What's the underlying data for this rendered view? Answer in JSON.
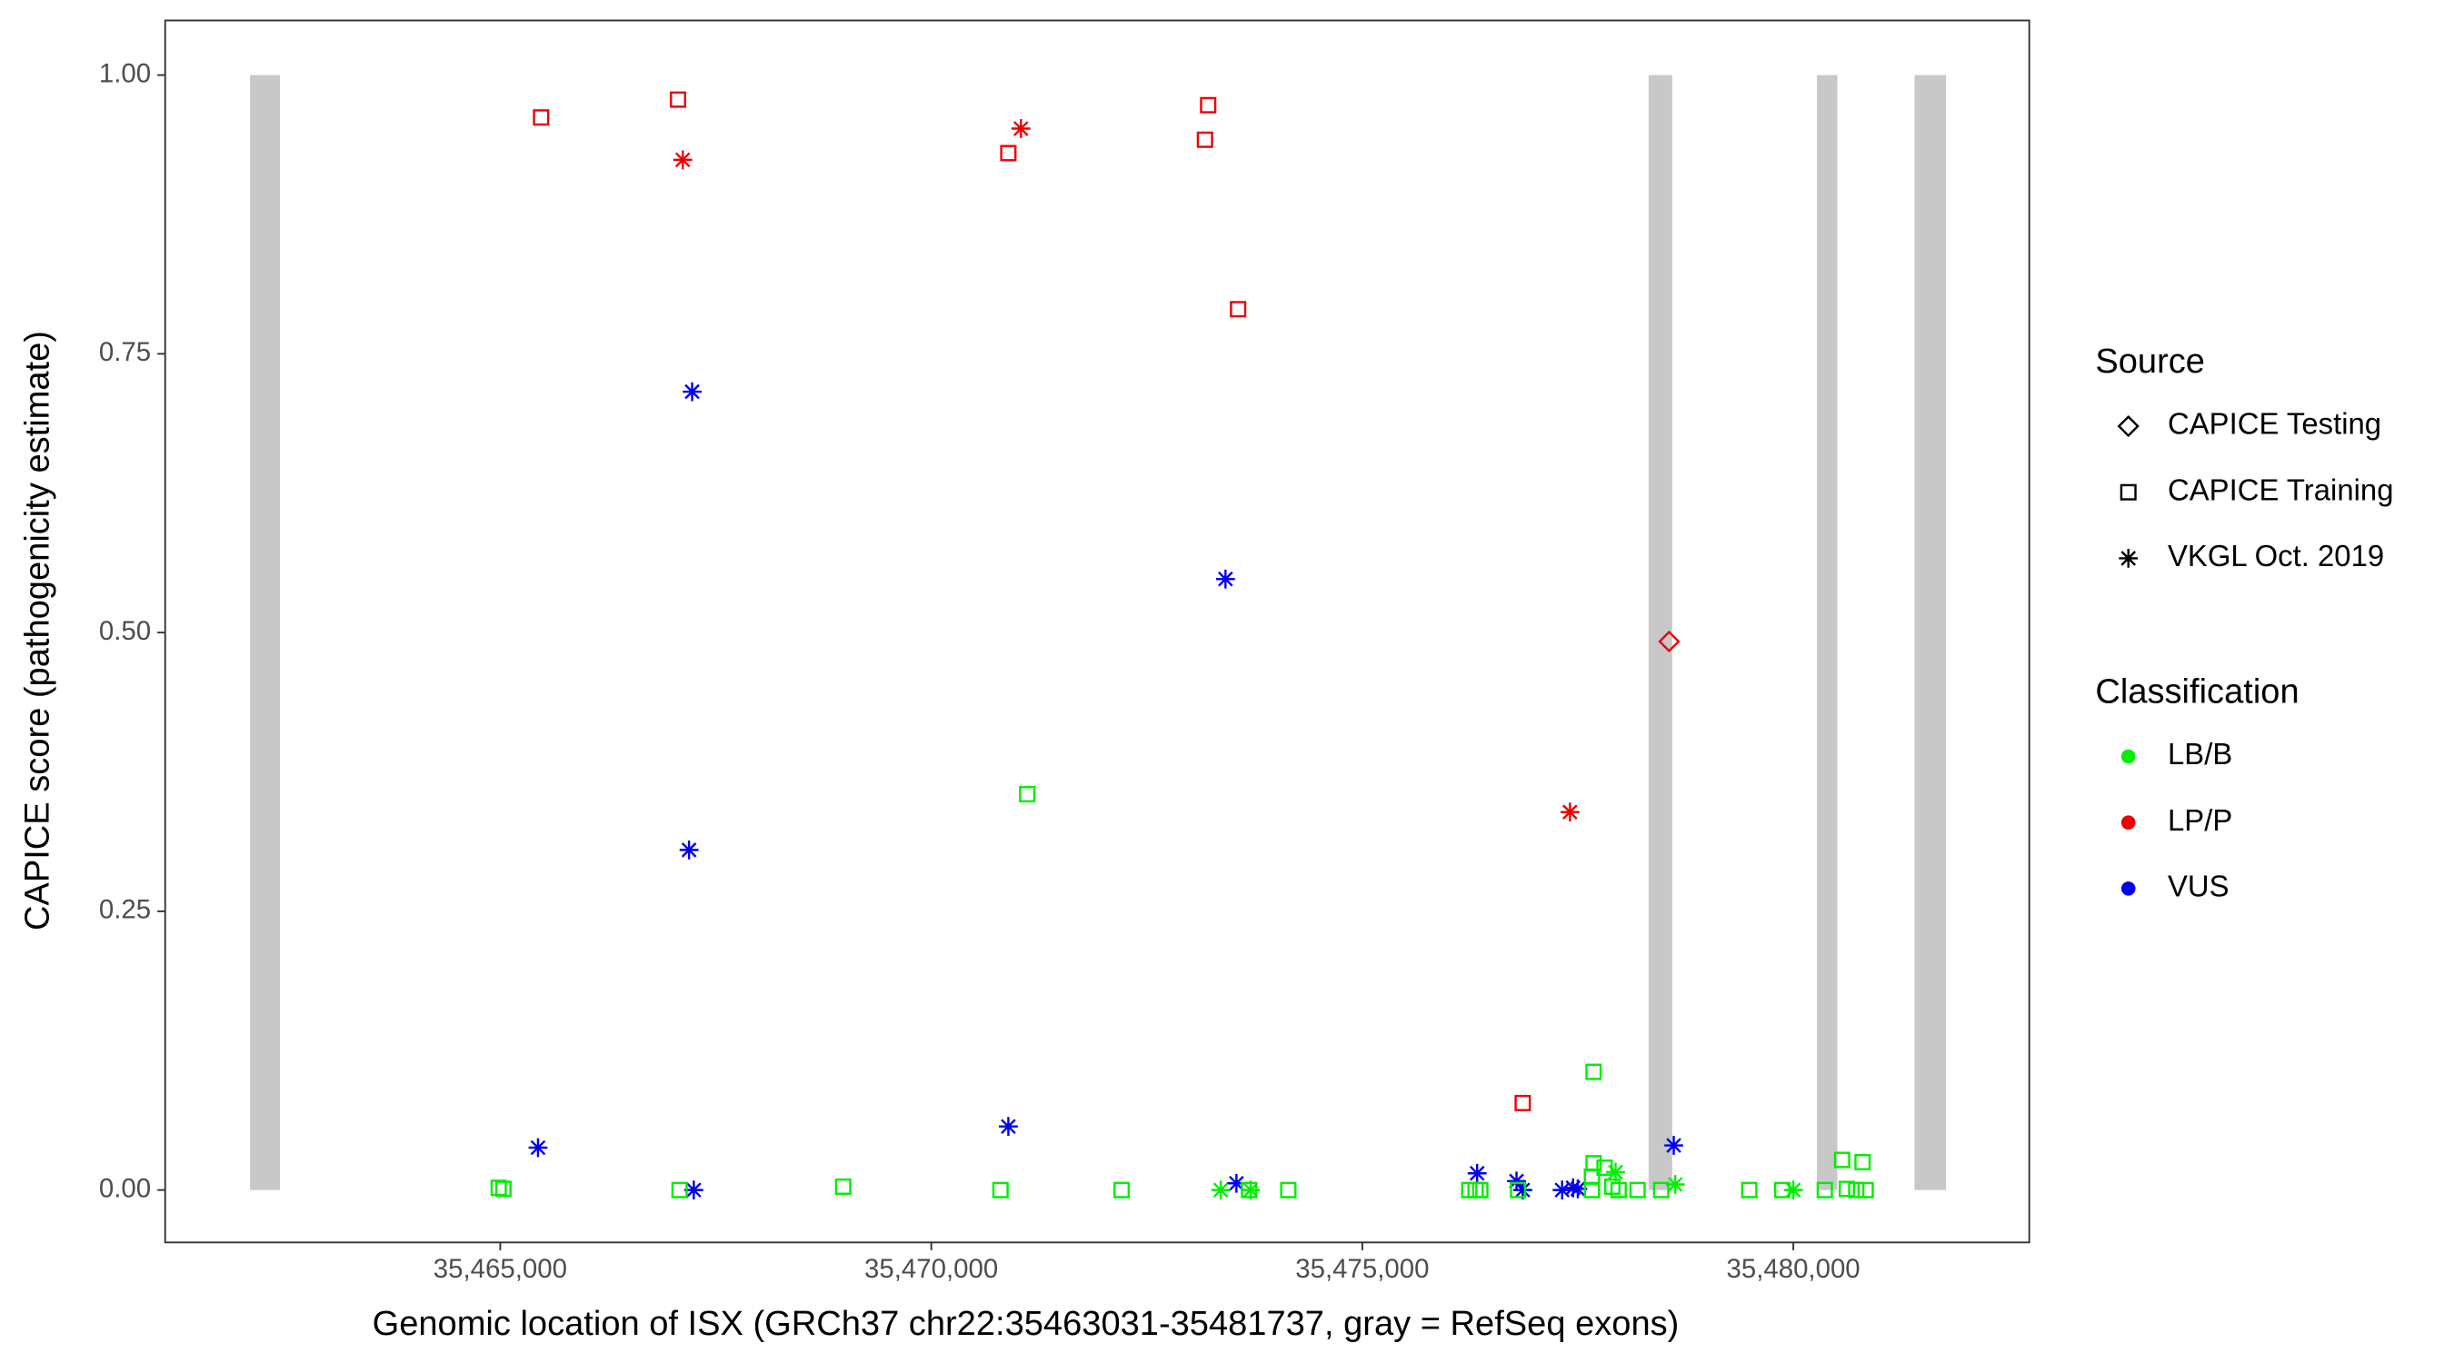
{
  "chart_data": {
    "type": "scatter",
    "x_label": "Genomic location of ISX (GRCh37 chr22:35463031-35481737, gray = RefSeq exons)",
    "y_label": "CAPICE score (pathogenicity estimate)",
    "xlim": [
      35461113,
      35482737
    ],
    "ylim": [
      -0.047,
      1.049
    ],
    "xticks": [
      {
        "value": 35465000,
        "label": "35,465,000"
      },
      {
        "value": 35470000,
        "label": "35,470,000"
      },
      {
        "value": 35475000,
        "label": "35,475,000"
      },
      {
        "value": 35480000,
        "label": "35,480,000"
      }
    ],
    "yticks": [
      {
        "value": 0,
        "label": "0.00"
      },
      {
        "value": 0.25,
        "label": "0.25"
      },
      {
        "value": 0.5,
        "label": "0.50"
      },
      {
        "value": 0.75,
        "label": "0.75"
      },
      {
        "value": 1,
        "label": "1.00"
      }
    ],
    "grid": false,
    "exon_color": "#c8c8c8",
    "exons": [
      {
        "start": 35462098,
        "end": 35462445
      },
      {
        "start": 35478321,
        "end": 35478595
      },
      {
        "start": 35480274,
        "end": 35480511
      },
      {
        "start": 35481406,
        "end": 35481771
      }
    ],
    "source_legend": {
      "title": "Source",
      "items": [
        {
          "name": "CAPICE Testing",
          "shape": "diamond"
        },
        {
          "name": "CAPICE Training",
          "shape": "square"
        },
        {
          "name": "VKGL Oct. 2019",
          "shape": "star"
        }
      ]
    },
    "classification_legend": {
      "title": "Classification",
      "items": [
        {
          "name": "LB/B",
          "color": "#00ee00"
        },
        {
          "name": "LP/P",
          "color": "#ee0000"
        },
        {
          "name": "VUS",
          "color": "#0000ee"
        }
      ]
    },
    "series": [
      {
        "source": 1,
        "classification": 1,
        "x": [
          35465474,
          35467062,
          35470894,
          35473212,
          35473175,
          35473559,
          35476861
        ],
        "values": [
          0.962,
          0.978,
          0.93,
          0.973,
          0.942,
          0.79,
          0.078
        ]
      },
      {
        "source": 2,
        "classification": 1,
        "x": [
          35467117,
          35471040,
          35477409
        ],
        "values": [
          0.924,
          0.952,
          0.339
        ]
      },
      {
        "source": 0,
        "classification": 1,
        "x": [
          35478559
        ],
        "values": [
          0.492
        ]
      },
      {
        "source": 2,
        "classification": 2,
        "x": [
          35467226,
          35467190,
          35465438,
          35470894,
          35473413,
          35467245,
          35473540,
          35476332,
          35476789,
          35476861,
          35477318,
          35477445,
          35477500,
          35478613
        ],
        "values": [
          0.716,
          0.305,
          0.038,
          0.057,
          0.548,
          0.0,
          0.006,
          0.015,
          0.008,
          0.0,
          0.0,
          0.002,
          0.001,
          0.04
        ]
      },
      {
        "source": 1,
        "classification": 0,
        "x": [
          35464982,
          35465037,
          35467080,
          35468978,
          35470803,
          35471113,
          35472208,
          35473686,
          35474142,
          35476241,
          35476314,
          35476369,
          35476807,
          35477683,
          35477683,
          35477810,
          35477664,
          35477664,
          35477901,
          35477974,
          35478193,
          35478467,
          35479489,
          35479872,
          35480365,
          35480566,
          35480621,
          35480730,
          35480803,
          35480839
        ],
        "values": [
          0.002,
          0.001,
          0.0,
          0.003,
          0.0,
          0.355,
          0.0,
          0.0,
          0.0,
          0.0,
          0.0,
          0.0,
          0.0,
          0.106,
          0.024,
          0.02,
          0.0,
          0.012,
          0.003,
          0.0,
          0.0,
          0.0,
          0.0,
          0.0,
          0.0,
          0.027,
          0.001,
          0.0,
          0.025,
          0.0
        ]
      },
      {
        "source": 2,
        "classification": 0,
        "x": [
          35473358,
          35473704,
          35477938,
          35478631,
          35480000
        ],
        "values": [
          0.0,
          0.0,
          0.016,
          0.005,
          0.0
        ]
      }
    ]
  }
}
